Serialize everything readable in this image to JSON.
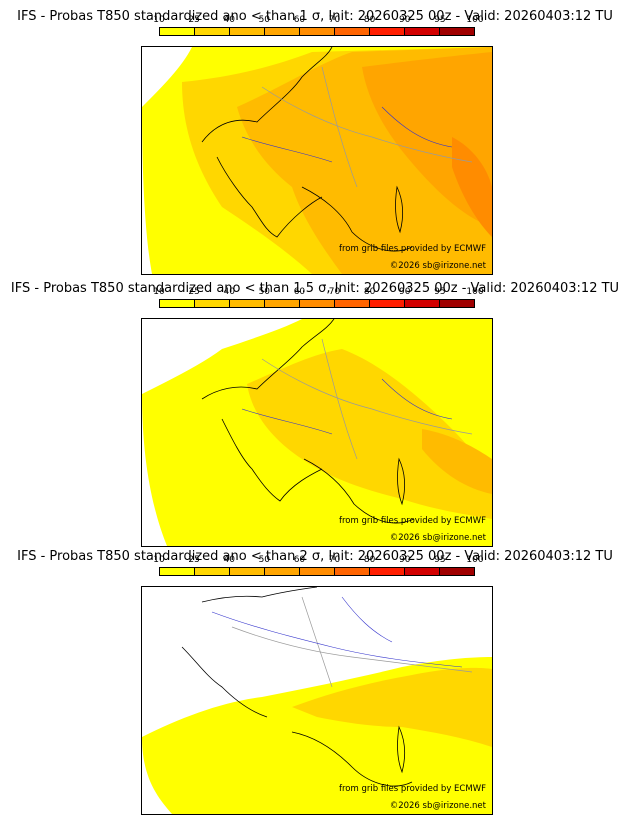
{
  "panels": [
    {
      "title": "IFS - Probas T850  standardized ano < than 1 σ, Init: 20260325 00z - Valid: 20260403:12 TU",
      "threshold": "1"
    },
    {
      "title": "IFS - Probas T850  standardized ano < than 1.5 σ, Init: 20260325 00z - Valid: 20260403:12 TU",
      "threshold": "1.5"
    },
    {
      "title": "IFS - Probas T850  standardized ano < than 2 σ, Init: 20260325 00z - Valid: 20260403:12 TU",
      "threshold": "2"
    }
  ],
  "colorbar": {
    "ticks": [
      "10",
      "25",
      "40",
      "50",
      "60",
      "70",
      "80",
      "90",
      "95",
      "100"
    ],
    "colors": [
      "#ffff00",
      "#ffd700",
      "#ffbb00",
      "#ffa500",
      "#ff8c00",
      "#ff6400",
      "#ff1e00",
      "#d20000",
      "#a00000",
      "#5a0000"
    ]
  },
  "credits": {
    "source": "from grib files provided by ECMWF",
    "copyright": "©2026 sb@irizone.net"
  },
  "map_colors": {
    "land": "#ffffff",
    "coast": "#000000",
    "borders": "#9a9a9a",
    "rivers": "#3333cc"
  }
}
